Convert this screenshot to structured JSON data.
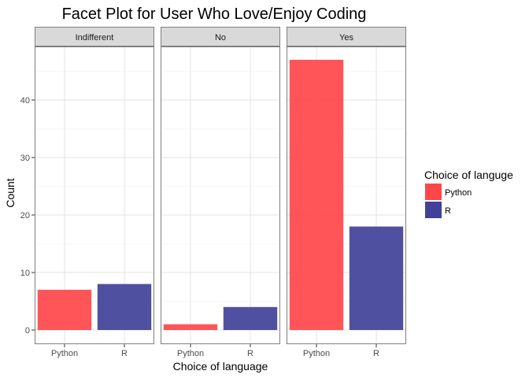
{
  "chart_data": {
    "type": "bar",
    "title": "Facet Plot for User Who Love/Enjoy Coding",
    "xlabel": "Choice of language",
    "ylabel": "Count",
    "categories": [
      "Python",
      "R"
    ],
    "ylim": [
      0,
      49
    ],
    "yticks": [
      0,
      10,
      20,
      30,
      40
    ],
    "facets": [
      {
        "label": "Indifferent",
        "values": [
          7,
          8
        ]
      },
      {
        "label": "No",
        "values": [
          1,
          4
        ]
      },
      {
        "label": "Yes",
        "values": [
          47,
          18
        ]
      }
    ],
    "legend": {
      "title": "Choice of languge",
      "position": "right",
      "items": [
        {
          "label": "Python",
          "color": "#ff474b"
        },
        {
          "label": "R",
          "color": "#414199"
        }
      ]
    },
    "grid": true
  }
}
